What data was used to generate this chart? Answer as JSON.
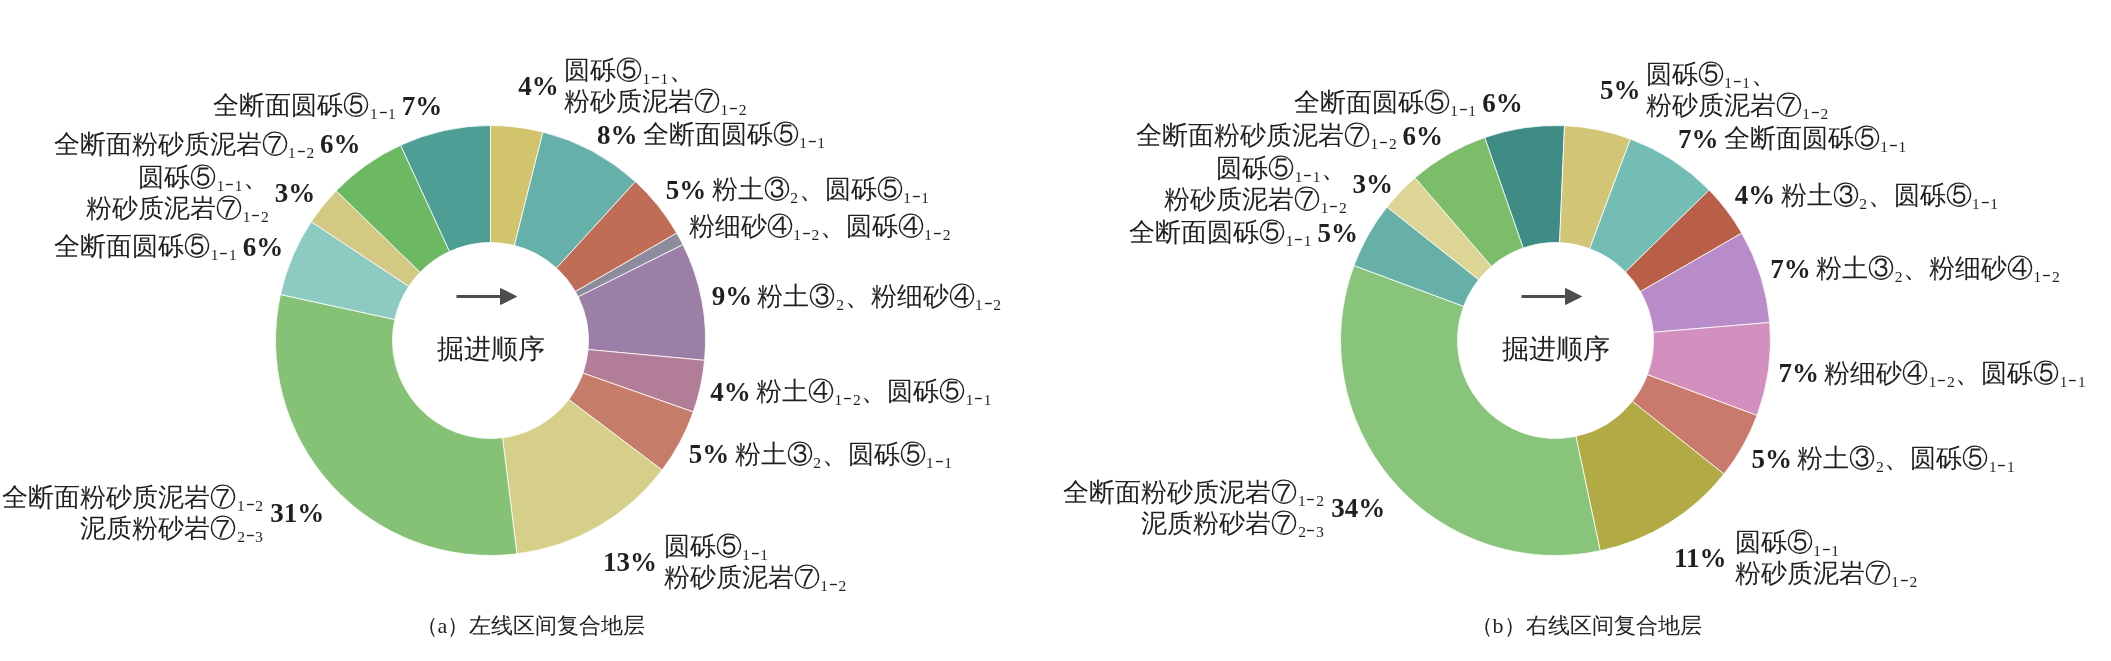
{
  "chart_data": [
    {
      "type": "donut",
      "title": "（a）左线区间复合地层",
      "categories": [
        "粉细砂④₁₋₂、圆砾④₁₋₂",
        "粉土③₂、粉细砂④₁₋₂",
        "粉土④₁₋₂、圆砾⑤₁₋₁",
        "粉土③₂、圆砾⑤₁₋₁",
        "圆砾⑤₁₋₁粉砂质泥岩⑦₁₋₂",
        "全断面粉砂质泥岩⑦₁₋₂泥质粉砂岩⑦₂₋₃",
        "全断面圆砾⑤₁₋₁",
        "圆砾⑤₁₋₁、粉砂质泥岩⑦₁₋₂",
        "全断面粉砂质泥岩⑦₁₋₂",
        "全断面圆砾⑤₁₋₁",
        "圆砾⑤₁₋₁、粉砂质泥岩⑦₁₋₂",
        "全断面圆砾⑤₁₋₁",
        "粉土③₂、圆砾⑤₁₋₁"
      ],
      "values": [
        1,
        9,
        4,
        5,
        13,
        31,
        6,
        3,
        6,
        7,
        4,
        8,
        5
      ],
      "value_labels": [
        null,
        "9%",
        "4%",
        "5%",
        "13%",
        "31%",
        "6%",
        "3%",
        "6%",
        "7%",
        "4%",
        "8%",
        "5%"
      ],
      "colors": [
        "#8c8c9c",
        "#9b7fa6",
        "#b27d96",
        "#c57c68",
        "#d6cf8a",
        "#86c276",
        "#8ccac2",
        "#d3c982",
        "#6db862",
        "#4e9e96",
        "#d2c46c",
        "#65b1aa",
        "#c06d57"
      ],
      "annotations": [
        "掘进顺序"
      ]
    },
    {
      "type": "donut",
      "title": "（b）右线区间复合地层",
      "categories": [
        "粉土③₂、粉细砂④₁₋₂",
        "粉细砂④₁₋₂、圆砾⑤₁₋₁",
        "粉土③₂、圆砾⑤₁₋₁",
        "圆砾⑤₁₋₁粉砂质泥岩⑦₁₋₂",
        "全断面粉砂质泥岩⑦₁₋₂泥质粉砂岩⑦₂₋₃",
        "全断面圆砾⑤₁₋₁",
        "圆砾⑤₁₋₁、粉砂质泥岩⑦₁₋₂",
        "全断面粉砂质泥岩⑦₁₋₂",
        "全断面圆砾⑤₁₋₁",
        "圆砾⑤₁₋₁、粉砂质泥岩⑦₁₋₂",
        "全断面圆砾⑤₁₋₁",
        "粉土③₂、圆砾⑤₁₋₁"
      ],
      "values": [
        7,
        7,
        5,
        11,
        34,
        5,
        3,
        6,
        6,
        5,
        7,
        4
      ],
      "value_labels": [
        "7%",
        "7%",
        "5%",
        "11%",
        "34%",
        "5%",
        "3%",
        "6%",
        "6%",
        "5%",
        "7%",
        "4%"
      ],
      "colors": [
        "#b88cc8",
        "#d38fbd",
        "#c97a6c",
        "#b2aa45",
        "#88c47a",
        "#66b0a8",
        "#ddd596",
        "#7cbd6a",
        "#3f8c87",
        "#d2c576",
        "#74bdb5",
        "#b95f48"
      ],
      "annotations": [
        "掘进顺序"
      ]
    }
  ]
}
